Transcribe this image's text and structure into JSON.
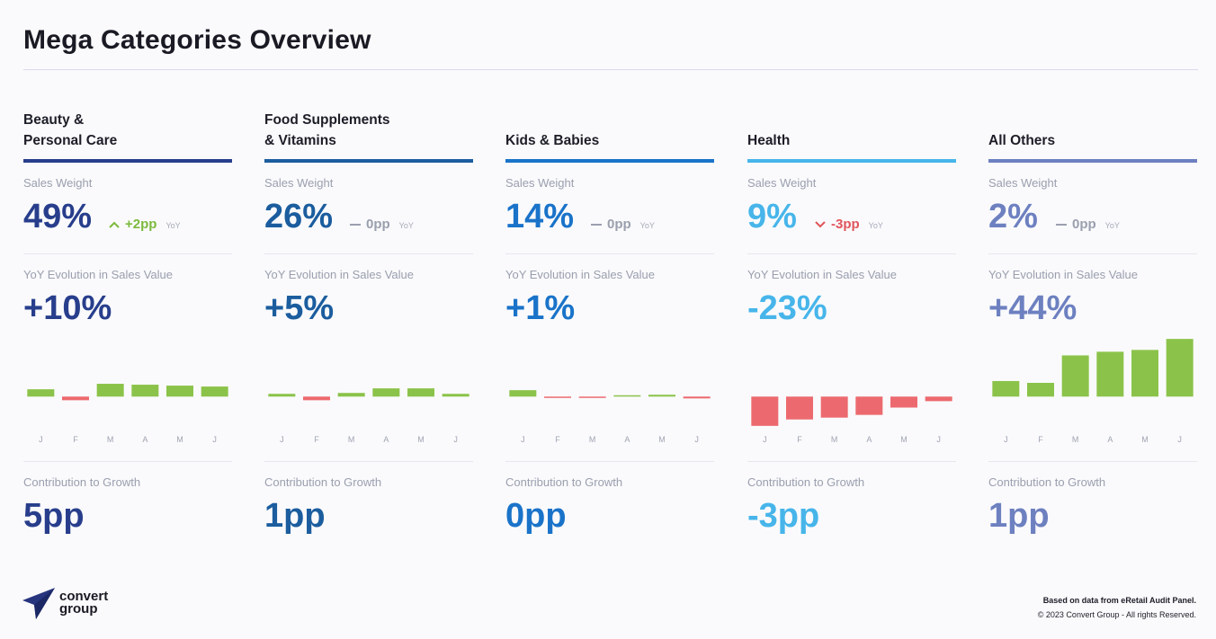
{
  "page": {
    "title": "Mega Categories Overview"
  },
  "labels": {
    "sales_weight": "Sales Weight",
    "yoy_evolution": "YoY Evolution in Sales Value",
    "contribution": "Contribution to Growth",
    "yoy_tag": "YoY"
  },
  "categories": [
    {
      "name": "Beauty &\nPersonal Care",
      "color": "#283e8c",
      "sales_weight": "49%",
      "weight_delta": "+2pp",
      "delta_dir": "up",
      "yoy": "+10%",
      "contribution": "5pp"
    },
    {
      "name": "Food Supplements\n& Vitamins",
      "color": "#1b5d9e",
      "sales_weight": "26%",
      "weight_delta": "0pp",
      "delta_dir": "flat",
      "yoy": "+5%",
      "contribution": "1pp"
    },
    {
      "name": "Kids & Babies",
      "color": "#1a73c9",
      "sales_weight": "14%",
      "weight_delta": "0pp",
      "delta_dir": "flat",
      "yoy": "+1%",
      "contribution": "0pp"
    },
    {
      "name": "Health",
      "color": "#47b5ea",
      "sales_weight": "9%",
      "weight_delta": "-3pp",
      "delta_dir": "down",
      "yoy": "-23%",
      "contribution": "-3pp"
    },
    {
      "name": "All Others",
      "color": "#6d80c0",
      "sales_weight": "2%",
      "weight_delta": "0pp",
      "delta_dir": "flat",
      "yoy": "+44%",
      "contribution": "1pp"
    }
  ],
  "chart_data": [
    {
      "type": "bar",
      "title": "Beauty & Personal Care",
      "categories": [
        "J",
        "F",
        "M",
        "A",
        "M",
        "J"
      ],
      "values": [
        8,
        -4,
        14,
        13,
        12,
        11
      ],
      "ylim": [
        -40,
        70
      ]
    },
    {
      "type": "bar",
      "title": "Food Supplements & Vitamins",
      "categories": [
        "J",
        "F",
        "M",
        "A",
        "M",
        "J"
      ],
      "values": [
        3,
        -4,
        4,
        9,
        9,
        3
      ],
      "ylim": [
        -40,
        70
      ]
    },
    {
      "type": "bar",
      "title": "Kids & Babies",
      "categories": [
        "J",
        "F",
        "M",
        "A",
        "M",
        "J"
      ],
      "values": [
        7,
        -1,
        -0.5,
        1,
        2,
        -2
      ],
      "ylim": [
        -40,
        70
      ]
    },
    {
      "type": "bar",
      "title": "Health",
      "categories": [
        "J",
        "F",
        "M",
        "A",
        "M",
        "J"
      ],
      "values": [
        -32,
        -25,
        -23,
        -20,
        -12,
        -5
      ],
      "ylim": [
        -40,
        70
      ]
    },
    {
      "type": "bar",
      "title": "All Others",
      "categories": [
        "J",
        "F",
        "M",
        "A",
        "M",
        "J"
      ],
      "values": [
        17,
        15,
        45,
        49,
        51,
        63
      ],
      "ylim": [
        -40,
        70
      ]
    }
  ],
  "colors": {
    "positive": "#8bc34a",
    "negative": "#ec6a6f",
    "delta_up": "#7cba3d",
    "delta_down": "#e0555b",
    "delta_flat": "#9a9fae"
  },
  "logo": {
    "text": "convert\ngroup"
  },
  "footer": {
    "line1": "Based on data from eRetail Audit Panel.",
    "line2": "© 2023 Convert Group - All rights Reserved."
  }
}
